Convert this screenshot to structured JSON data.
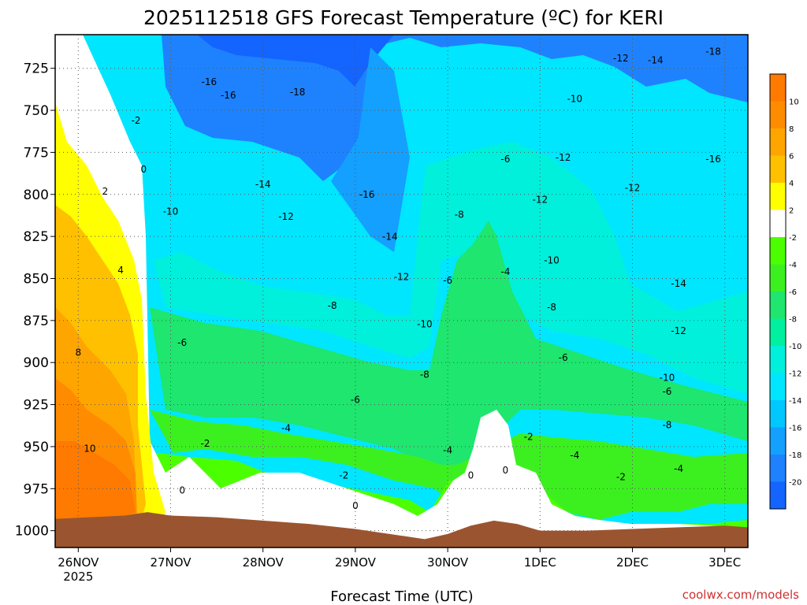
{
  "chart_data": {
    "type": "heatmap",
    "title": "2025112518 GFS Forecast Temperature (ºC) for KERI",
    "xlabel": "Forecast Time (UTC)",
    "ylabel": "",
    "credit": "coolwx.com/models",
    "y_axis": {
      "quantity": "pressure (hPa)",
      "range": [
        1010,
        705
      ],
      "ticks": [
        725,
        750,
        775,
        800,
        825,
        850,
        875,
        900,
        925,
        950,
        975,
        1000
      ]
    },
    "x_axis": {
      "range": [
        "2025-11-25T18",
        "2025-12-03T06"
      ],
      "ticks": [
        {
          "time": "2025-11-26T00",
          "label": "26NOV",
          "sublabel": "2025"
        },
        {
          "time": "2025-11-27T00",
          "label": "27NOV",
          "sublabel": ""
        },
        {
          "time": "2025-11-28T00",
          "label": "28NOV",
          "sublabel": ""
        },
        {
          "time": "2025-11-29T00",
          "label": "29NOV",
          "sublabel": ""
        },
        {
          "time": "2025-11-30T00",
          "label": "30NOV",
          "sublabel": ""
        },
        {
          "time": "2025-12-01T00",
          "label": "1DEC",
          "sublabel": ""
        },
        {
          "time": "2025-12-02T00",
          "label": "2DEC",
          "sublabel": ""
        },
        {
          "time": "2025-12-03T00",
          "label": "3DEC",
          "sublabel": ""
        }
      ]
    },
    "grid": true,
    "legend_placement": "right",
    "colorbar": {
      "labels": [
        "10",
        "8",
        "6",
        "4",
        "2",
        "-2",
        "-4",
        "-6",
        "-8",
        "-10",
        "-12",
        "-14",
        "-16",
        "-18",
        "-20"
      ],
      "bins": [
        {
          "min": 10,
          "max": 12,
          "color": "#ff7a00"
        },
        {
          "min": 8,
          "max": 10,
          "color": "#ff8c00"
        },
        {
          "min": 6,
          "max": 8,
          "color": "#ffa500"
        },
        {
          "min": 4,
          "max": 6,
          "color": "#ffc000"
        },
        {
          "min": 2,
          "max": 4,
          "color": "#ffff00"
        },
        {
          "min": -2,
          "max": 2,
          "color": "#ffffff"
        },
        {
          "min": -4,
          "max": -2,
          "color": "#4cff00"
        },
        {
          "min": -6,
          "max": -4,
          "color": "#3cf020"
        },
        {
          "min": -8,
          "max": -6,
          "color": "#1ee66e"
        },
        {
          "min": -10,
          "max": -8,
          "color": "#00f0a0"
        },
        {
          "min": -12,
          "max": -10,
          "color": "#00f0dc"
        },
        {
          "min": -14,
          "max": -12,
          "color": "#00e6ff"
        },
        {
          "min": -16,
          "max": -14,
          "color": "#00c8ff"
        },
        {
          "min": -18,
          "max": -16,
          "color": "#14a0ff"
        },
        {
          "min": -20,
          "max": -18,
          "color": "#1e82ff"
        },
        {
          "min": -22,
          "max": -20,
          "color": "#1464ff"
        }
      ]
    },
    "ground_color": "#9a5530",
    "ground_pressure": [
      {
        "time": "2025-11-25T18",
        "p": 993
      },
      {
        "time": "2025-11-26T12",
        "p": 991
      },
      {
        "time": "2025-11-26T18",
        "p": 989
      },
      {
        "time": "2025-11-27T00",
        "p": 991
      },
      {
        "time": "2025-11-27T12",
        "p": 992
      },
      {
        "time": "2025-11-28T00",
        "p": 994
      },
      {
        "time": "2025-11-28T12",
        "p": 996
      },
      {
        "time": "2025-11-29T00",
        "p": 999
      },
      {
        "time": "2025-11-29T12",
        "p": 1003
      },
      {
        "time": "2025-11-29T18",
        "p": 1005
      },
      {
        "time": "2025-11-30T00",
        "p": 1002
      },
      {
        "time": "2025-11-30T06",
        "p": 997
      },
      {
        "time": "2025-11-30T12",
        "p": 994
      },
      {
        "time": "2025-11-30T18",
        "p": 996
      },
      {
        "time": "2025-12-01T00",
        "p": 1000
      },
      {
        "time": "2025-12-01T12",
        "p": 1000
      },
      {
        "time": "2025-12-02T00",
        "p": 999
      },
      {
        "time": "2025-12-02T12",
        "p": 998
      },
      {
        "time": "2025-12-03T00",
        "p": 997
      },
      {
        "time": "2025-12-03T06",
        "p": 998
      }
    ],
    "contour_labels": [
      {
        "text": "10",
        "time": "2025-11-26T03",
        "p": 953
      },
      {
        "text": "8",
        "time": "2025-11-26T00",
        "p": 896
      },
      {
        "text": "4",
        "time": "2025-11-26T11",
        "p": 847
      },
      {
        "text": "2",
        "time": "2025-11-26T07",
        "p": 800
      },
      {
        "text": "0",
        "time": "2025-11-26T17",
        "p": 787
      },
      {
        "text": "-2",
        "time": "2025-11-26T15",
        "p": 758
      },
      {
        "text": "-16",
        "time": "2025-11-27T10",
        "p": 735
      },
      {
        "text": "-16",
        "time": "2025-11-27T15",
        "p": 743
      },
      {
        "text": "-18",
        "time": "2025-11-28T09",
        "p": 741
      },
      {
        "text": "-10",
        "time": "2025-11-27T00",
        "p": 812
      },
      {
        "text": "-14",
        "time": "2025-11-28T00",
        "p": 796
      },
      {
        "text": "-12",
        "time": "2025-11-28T06",
        "p": 815
      },
      {
        "text": "-8",
        "time": "2025-11-28T18",
        "p": 868
      },
      {
        "text": "-6",
        "time": "2025-11-27T03",
        "p": 890
      },
      {
        "text": "-4",
        "time": "2025-11-28T06",
        "p": 941
      },
      {
        "text": "-2",
        "time": "2025-11-27T09",
        "p": 950
      },
      {
        "text": "0",
        "time": "2025-11-27T03",
        "p": 978
      },
      {
        "text": "-2",
        "time": "2025-11-28T21",
        "p": 969
      },
      {
        "text": "0",
        "time": "2025-11-29T00",
        "p": 987
      },
      {
        "text": "-6",
        "time": "2025-11-29T00",
        "p": 924
      },
      {
        "text": "-8",
        "time": "2025-11-29T18",
        "p": 909
      },
      {
        "text": "-10",
        "time": "2025-11-29T18",
        "p": 879
      },
      {
        "text": "-12",
        "time": "2025-11-29T12",
        "p": 851
      },
      {
        "text": "-14",
        "time": "2025-11-29T09",
        "p": 827
      },
      {
        "text": "-16",
        "time": "2025-11-29T03",
        "p": 802
      },
      {
        "text": "-4",
        "time": "2025-11-30T00",
        "p": 954
      },
      {
        "text": "-6",
        "time": "2025-11-30T00",
        "p": 853
      },
      {
        "text": "-8",
        "time": "2025-11-30T03",
        "p": 814
      },
      {
        "text": "-6",
        "time": "2025-11-30T15",
        "p": 781
      },
      {
        "text": "-4",
        "time": "2025-11-30T15",
        "p": 848
      },
      {
        "text": "0",
        "time": "2025-11-30T06",
        "p": 969
      },
      {
        "text": "0",
        "time": "2025-11-30T15",
        "p": 966
      },
      {
        "text": "-2",
        "time": "2025-11-30T21",
        "p": 946
      },
      {
        "text": "-10",
        "time": "2025-12-01T09",
        "p": 745
      },
      {
        "text": "-12",
        "time": "2025-12-01T06",
        "p": 780
      },
      {
        "text": "-12",
        "time": "2025-12-01T00",
        "p": 805
      },
      {
        "text": "-10",
        "time": "2025-12-01T03",
        "p": 841
      },
      {
        "text": "-8",
        "time": "2025-12-01T03",
        "p": 869
      },
      {
        "text": "-6",
        "time": "2025-12-01T06",
        "p": 899
      },
      {
        "text": "-4",
        "time": "2025-12-01T09",
        "p": 957
      },
      {
        "text": "-2",
        "time": "2025-12-01T21",
        "p": 970
      },
      {
        "text": "-12",
        "time": "2025-12-01T21",
        "p": 721
      },
      {
        "text": "-14",
        "time": "2025-12-02T06",
        "p": 722
      },
      {
        "text": "-18",
        "time": "2025-12-02T21",
        "p": 717
      },
      {
        "text": "-12",
        "time": "2025-12-02T00",
        "p": 798
      },
      {
        "text": "-16",
        "time": "2025-12-02T21",
        "p": 781
      },
      {
        "text": "-14",
        "time": "2025-12-02T12",
        "p": 855
      },
      {
        "text": "-12",
        "time": "2025-12-02T12",
        "p": 883
      },
      {
        "text": "-10",
        "time": "2025-12-02T09",
        "p": 911
      },
      {
        "text": "-8",
        "time": "2025-12-02T09",
        "p": 939
      },
      {
        "text": "-6",
        "time": "2025-12-02T09",
        "p": 919
      },
      {
        "text": "-4",
        "time": "2025-12-02T12",
        "p": 965
      }
    ]
  }
}
